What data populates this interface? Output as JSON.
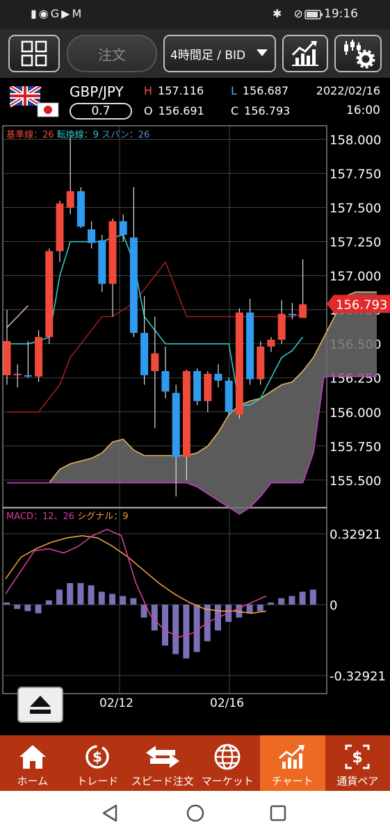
{
  "status_bar": {
    "time": "19:16",
    "left_icons": "▮◉G▶M",
    "right_icons": "✱ 🔕"
  },
  "toolbar": {
    "order_label": "注文",
    "period_label": "4時間足 / BID"
  },
  "header": {
    "pair": "GBP/JPY",
    "spread": "0.7",
    "H": "157.116",
    "L": "156.687",
    "O": "156.691",
    "C": "156.793",
    "date": "2022/02/16",
    "time": "16:00"
  },
  "chart_data": [
    {
      "type": "candlestick",
      "legend": {
        "kijun": "基準線：26",
        "tenkan": "転換線：9",
        "span": "スパン：26"
      },
      "y_ticks": [
        "158.000",
        "157.750",
        "157.500",
        "157.250",
        "157.000",
        "156.750",
        "156.500",
        "156.250",
        "156.000",
        "155.750",
        "155.500"
      ],
      "ylim": [
        155.3,
        158.1
      ],
      "current_price": "156.793",
      "x_labels": [
        "02/12",
        "02/16"
      ],
      "candles": [
        {
          "o": 156.27,
          "h": 156.75,
          "l": 156.2,
          "c": 156.52
        },
        {
          "o": 156.28,
          "h": 156.35,
          "l": 156.18,
          "c": 156.28
        },
        {
          "o": 156.27,
          "h": 156.52,
          "l": 156.25,
          "c": 156.26
        },
        {
          "o": 156.26,
          "h": 156.6,
          "l": 156.22,
          "c": 156.55
        },
        {
          "o": 156.55,
          "h": 157.2,
          "l": 156.5,
          "c": 157.18
        },
        {
          "o": 157.18,
          "h": 157.55,
          "l": 157.1,
          "c": 157.53
        },
        {
          "o": 157.5,
          "h": 158.02,
          "l": 157.45,
          "c": 157.62
        },
        {
          "o": 157.62,
          "h": 157.65,
          "l": 157.35,
          "c": 157.36
        },
        {
          "o": 157.34,
          "h": 157.4,
          "l": 157.2,
          "c": 157.24
        },
        {
          "o": 157.26,
          "h": 157.3,
          "l": 156.88,
          "c": 156.94
        },
        {
          "o": 156.94,
          "h": 157.42,
          "l": 156.7,
          "c": 157.4
        },
        {
          "o": 157.4,
          "h": 157.45,
          "l": 157.25,
          "c": 157.3
        },
        {
          "o": 157.28,
          "h": 157.65,
          "l": 156.55,
          "c": 156.58
        },
        {
          "o": 156.58,
          "h": 156.85,
          "l": 156.2,
          "c": 156.27
        },
        {
          "o": 156.3,
          "h": 156.7,
          "l": 155.88,
          "c": 156.43
        },
        {
          "o": 156.3,
          "h": 156.48,
          "l": 156.1,
          "c": 156.15
        },
        {
          "o": 156.14,
          "h": 156.2,
          "l": 155.38,
          "c": 155.67
        },
        {
          "o": 155.67,
          "h": 156.31,
          "l": 155.5,
          "c": 156.3
        },
        {
          "o": 156.3,
          "h": 156.32,
          "l": 156.05,
          "c": 156.08
        },
        {
          "o": 156.08,
          "h": 156.3,
          "l": 156.0,
          "c": 156.28
        },
        {
          "o": 156.28,
          "h": 156.35,
          "l": 156.18,
          "c": 156.23
        },
        {
          "o": 156.23,
          "h": 156.25,
          "l": 155.98,
          "c": 156.0
        },
        {
          "o": 155.98,
          "h": 156.76,
          "l": 155.95,
          "c": 156.73
        },
        {
          "o": 156.73,
          "h": 156.83,
          "l": 156.2,
          "c": 156.24
        },
        {
          "o": 156.24,
          "h": 156.52,
          "l": 156.2,
          "c": 156.48
        },
        {
          "o": 156.48,
          "h": 156.55,
          "l": 156.44,
          "c": 156.53
        },
        {
          "o": 156.53,
          "h": 156.82,
          "l": 156.5,
          "c": 156.72
        },
        {
          "o": 156.72,
          "h": 156.8,
          "l": 156.68,
          "c": 156.71
        },
        {
          "o": 156.69,
          "h": 157.12,
          "l": 156.69,
          "c": 156.79
        }
      ],
      "kijun": [
        156.0,
        156.0,
        156.0,
        156.0,
        156.1,
        156.2,
        156.4,
        156.5,
        156.6,
        156.7,
        156.7,
        156.75,
        156.8,
        156.9,
        157.0,
        157.1,
        156.9,
        156.7,
        156.7,
        156.7,
        156.7,
        156.7,
        156.7,
        156.7,
        156.7,
        156.7,
        156.7,
        156.7,
        156.72
      ],
      "tenkan": [
        156.5,
        156.5,
        156.5,
        156.52,
        156.55,
        157.0,
        157.25,
        157.25,
        157.25,
        157.25,
        157.28,
        157.3,
        157.1,
        156.7,
        156.6,
        156.5,
        156.5,
        156.5,
        156.5,
        156.5,
        156.5,
        156.5,
        156.05,
        156.05,
        156.1,
        156.25,
        156.4,
        156.45,
        156.55
      ],
      "span_a": [
        155.48,
        155.48,
        155.48,
        155.48,
        155.48,
        155.58,
        155.62,
        155.64,
        155.66,
        155.7,
        155.78,
        155.8,
        155.72,
        155.68,
        155.68,
        155.68,
        155.68,
        155.68,
        155.7,
        155.75,
        155.85,
        155.98,
        156.05,
        156.08,
        156.1,
        156.15,
        156.2,
        156.22,
        156.3,
        156.4,
        156.55,
        156.7,
        156.85,
        156.88,
        156.88,
        156.88
      ],
      "span_b": [
        155.48,
        155.48,
        155.48,
        155.48,
        155.48,
        155.48,
        155.48,
        155.48,
        155.48,
        155.48,
        155.48,
        155.48,
        155.48,
        155.48,
        155.48,
        155.48,
        155.48,
        155.48,
        155.45,
        155.4,
        155.35,
        155.3,
        155.25,
        155.3,
        155.38,
        155.48,
        155.48,
        155.48,
        155.48,
        155.7,
        156.26,
        156.26,
        156.26,
        156.26,
        156.26,
        156.26
      ],
      "chikou": [
        156.62,
        156.7,
        156.78
      ]
    },
    {
      "type": "bar",
      "legend": {
        "macd": "MACD：12、26",
        "signal": "シグナル：9"
      },
      "y_ticks": [
        "0.32921",
        "0",
        "-0.32921"
      ],
      "ylim": [
        -0.32921,
        0.32921
      ],
      "histogram": [
        0.01,
        -0.02,
        -0.03,
        -0.04,
        0.02,
        0.07,
        0.1,
        0.1,
        0.09,
        0.06,
        0.05,
        0.04,
        0.03,
        -0.06,
        -0.12,
        -0.19,
        -0.23,
        -0.25,
        -0.22,
        -0.17,
        -0.12,
        -0.08,
        -0.06,
        -0.04,
        -0.03,
        0.01,
        0.03,
        0.04,
        0.06,
        0.07
      ],
      "macd": [
        0.05,
        0.15,
        0.25,
        0.26,
        0.24,
        0.27,
        0.32,
        0.35,
        0.32,
        0.1,
        -0.05,
        -0.12,
        -0.15,
        -0.13,
        -0.08,
        -0.05,
        -0.02,
        0.01,
        0.04
      ],
      "signal": [
        0.12,
        0.22,
        0.26,
        0.29,
        0.31,
        0.32,
        0.31,
        0.27,
        0.22,
        0.16,
        0.1,
        0.05,
        0.01,
        -0.02,
        -0.03,
        -0.03,
        -0.04,
        -0.03
      ]
    }
  ],
  "bottom_nav": [
    {
      "label": "ホーム",
      "icon": "home-icon"
    },
    {
      "label": "トレード",
      "icon": "trade-icon"
    },
    {
      "label": "スピード注文",
      "icon": "speed-order-icon"
    },
    {
      "label": "マーケット",
      "icon": "globe-icon"
    },
    {
      "label": "チャート",
      "icon": "chart-icon",
      "active": true
    },
    {
      "label": "通貨ペア",
      "icon": "currency-pair-icon"
    }
  ],
  "colors": {
    "bull": "#f04a3a",
    "bear": "#2f9bf0",
    "kijun": "#a51c1c",
    "tenkan": "#35c6c6",
    "span_a": "#e8b05a",
    "span_b": "#c03cc8",
    "cloud": "#6b6b6b",
    "macd": "#d43d9c",
    "signal": "#f0a040",
    "hist": "#7a70b8",
    "nav_bg": "#b33312",
    "nav_active": "#ec6a22"
  }
}
